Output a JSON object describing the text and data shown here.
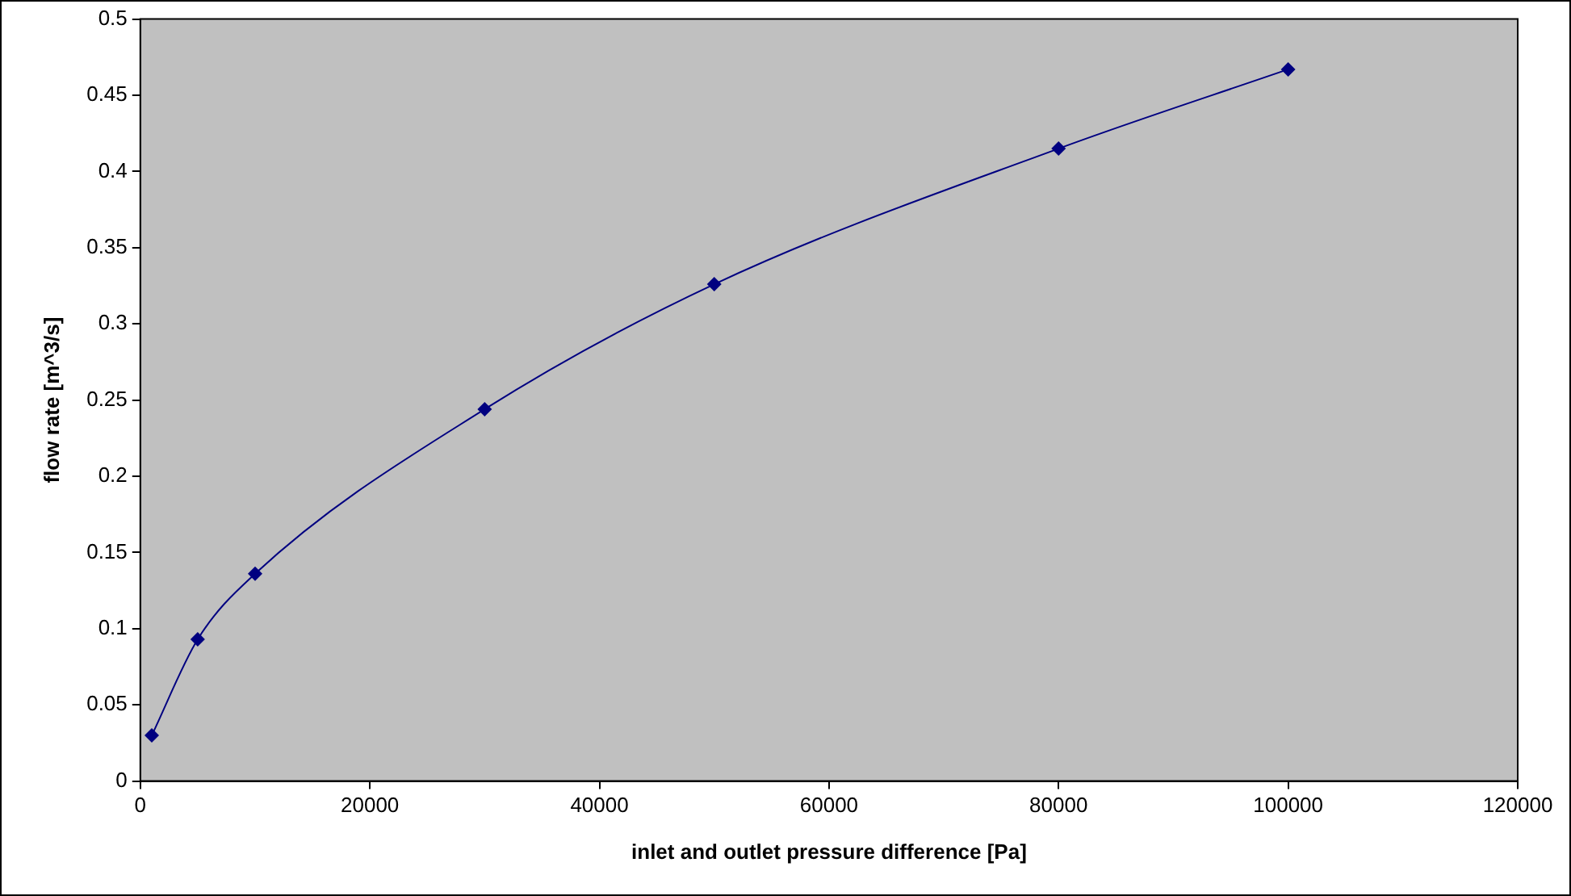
{
  "chart_data": {
    "type": "line",
    "xlabel": "inlet and outlet pressure difference [Pa]",
    "ylabel": "flow rate [m^3/s]",
    "x": [
      1000,
      5000,
      10000,
      30000,
      50000,
      80000,
      100000
    ],
    "series": [
      {
        "color": "#000080",
        "values": [
          0.03,
          0.093,
          0.136,
          0.244,
          0.326,
          0.415,
          0.467
        ]
      }
    ],
    "xlim": [
      0,
      120000
    ],
    "xticks": [
      0,
      20000,
      40000,
      60000,
      80000,
      100000,
      120000
    ],
    "ylim": [
      0,
      0.5
    ],
    "yticks": [
      0,
      0.05,
      0.1,
      0.15,
      0.2,
      0.25,
      0.3,
      0.35,
      0.4,
      0.45,
      0.5
    ],
    "grid": false,
    "legend": false,
    "marker": "diamond",
    "line_style": "solid"
  }
}
